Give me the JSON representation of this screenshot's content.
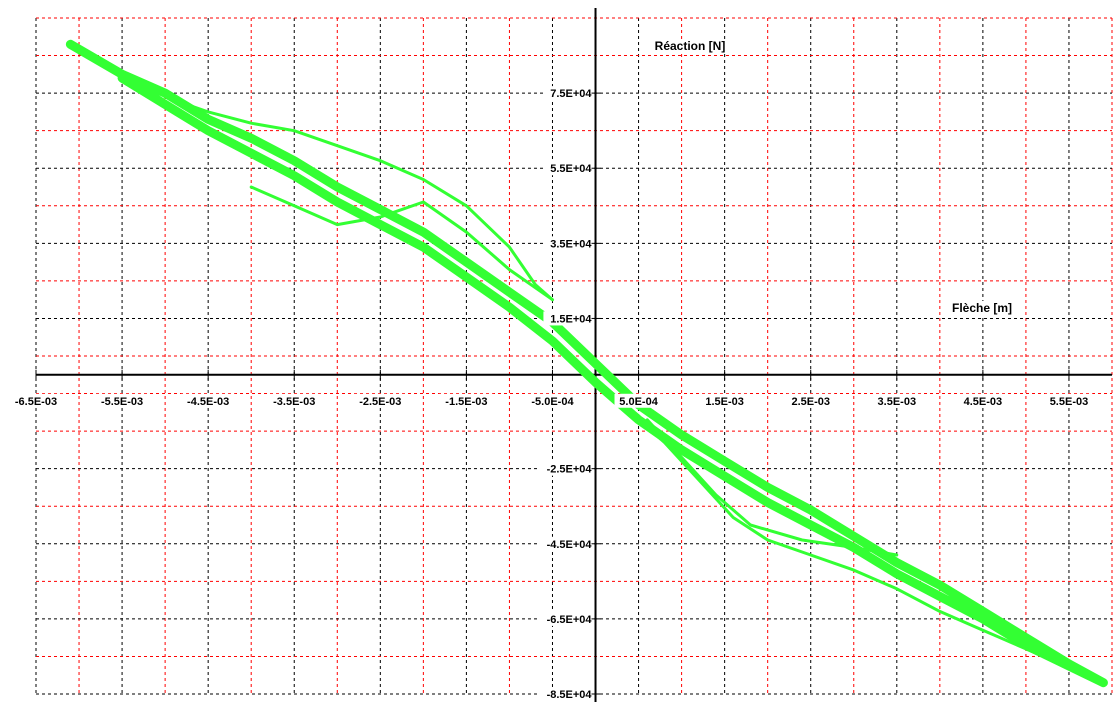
{
  "chart_data": {
    "type": "line",
    "x_axis": {
      "label": "Flèche [m]",
      "range": [
        -0.0065,
        0.006
      ],
      "ticks": [
        {
          "value": -0.0065,
          "label": "-6.5E-03"
        },
        {
          "value": -0.0055,
          "label": "-5.5E-03"
        },
        {
          "value": -0.0045,
          "label": "-4.5E-03"
        },
        {
          "value": -0.0035,
          "label": "-3.5E-03"
        },
        {
          "value": -0.0025,
          "label": "-2.5E-03"
        },
        {
          "value": -0.0015,
          "label": "-1.5E-03"
        },
        {
          "value": -0.0005,
          "label": "-5.0E-04"
        },
        {
          "value": 0.0005,
          "label": "5.0E-04"
        },
        {
          "value": 0.0015,
          "label": "1.5E-03"
        },
        {
          "value": 0.0025,
          "label": "2.5E-03"
        },
        {
          "value": 0.0035,
          "label": "3.5E-03"
        },
        {
          "value": 0.0045,
          "label": "4.5E-03"
        },
        {
          "value": 0.0055,
          "label": "5.5E-03"
        }
      ]
    },
    "y_axis": {
      "label": "Réaction [N]",
      "range": [
        -85000,
        95000
      ],
      "ticks": [
        {
          "value": 75000,
          "label": "7.5E+04"
        },
        {
          "value": 55000,
          "label": "5.5E+04"
        },
        {
          "value": 35000,
          "label": "3.5E+04"
        },
        {
          "value": 15000,
          "label": "1.5E+04"
        },
        {
          "value": -25000,
          "label": "-2.5E+04"
        },
        {
          "value": -45000,
          "label": "-4.5E+04"
        },
        {
          "value": -65000,
          "label": "-6.5E+04"
        },
        {
          "value": -85000,
          "label": "-8.5E+04"
        }
      ]
    },
    "grid": true,
    "grid_colors": {
      "major": "#000000",
      "minor": "#ff0000"
    },
    "series_color": "#33ff33",
    "series": [
      {
        "points": [
          [
            -0.0061,
            88000
          ],
          [
            -0.0055,
            80000
          ],
          [
            -0.005,
            75000
          ],
          [
            -0.0045,
            68000
          ],
          [
            -0.004,
            63000
          ],
          [
            -0.0035,
            57000
          ],
          [
            -0.003,
            50000
          ],
          [
            -0.0025,
            44000
          ],
          [
            -0.002,
            38000
          ],
          [
            -0.0015,
            30000
          ],
          [
            -0.001,
            22000
          ],
          [
            -0.0005,
            14000
          ],
          [
            0.0,
            3000
          ],
          [
            0.0005,
            -8000
          ],
          [
            0.001,
            -16000
          ],
          [
            0.0015,
            -23000
          ],
          [
            0.002,
            -30000
          ],
          [
            0.0025,
            -36000
          ],
          [
            0.003,
            -43000
          ],
          [
            0.0035,
            -50000
          ],
          [
            0.004,
            -56000
          ],
          [
            0.0045,
            -63000
          ],
          [
            0.005,
            -70000
          ],
          [
            0.0055,
            -77000
          ],
          [
            0.0059,
            -82000
          ],
          [
            0.005,
            -72000
          ],
          [
            0.0045,
            -65000
          ],
          [
            0.004,
            -59000
          ],
          [
            0.0035,
            -53000
          ],
          [
            0.003,
            -46000
          ],
          [
            0.0025,
            -40000
          ],
          [
            0.002,
            -34000
          ],
          [
            0.0015,
            -27000
          ],
          [
            0.001,
            -20000
          ],
          [
            0.0005,
            -12000
          ],
          [
            0.0,
            -2000
          ],
          [
            -0.0005,
            9000
          ],
          [
            -0.001,
            18000
          ],
          [
            -0.0015,
            26000
          ],
          [
            -0.002,
            34000
          ],
          [
            -0.0025,
            40000
          ],
          [
            -0.003,
            46000
          ],
          [
            -0.0035,
            53000
          ],
          [
            -0.004,
            59000
          ],
          [
            -0.0045,
            65000
          ],
          [
            -0.005,
            72000
          ],
          [
            -0.0055,
            79000
          ]
        ]
      },
      {
        "points": [
          [
            -0.005,
            74000
          ],
          [
            -0.0045,
            70000
          ],
          [
            -0.004,
            67000
          ],
          [
            -0.0035,
            65000
          ],
          [
            -0.003,
            61000
          ],
          [
            -0.0025,
            57000
          ],
          [
            -0.002,
            52000
          ],
          [
            -0.0015,
            45000
          ],
          [
            -0.001,
            34000
          ],
          [
            -0.0007,
            24000
          ],
          [
            -0.0005,
            20000
          ]
        ]
      },
      {
        "points": [
          [
            -0.0005,
            20000
          ],
          [
            -0.001,
            28000
          ],
          [
            -0.0015,
            38000
          ],
          [
            -0.002,
            46000
          ],
          [
            -0.0025,
            42000
          ],
          [
            -0.003,
            40000
          ],
          [
            -0.0035,
            45000
          ],
          [
            -0.004,
            50000
          ]
        ]
      },
      {
        "points": [
          [
            0.0004,
            -10000
          ],
          [
            0.0008,
            -18000
          ],
          [
            0.0012,
            -28000
          ],
          [
            0.0016,
            -38000
          ],
          [
            0.002,
            -44000
          ],
          [
            0.0025,
            -48000
          ],
          [
            0.003,
            -52000
          ],
          [
            0.0035,
            -57000
          ],
          [
            0.004,
            -63000
          ],
          [
            0.0045,
            -68000
          ],
          [
            0.005,
            -73000
          ],
          [
            0.0055,
            -78000
          ]
        ]
      },
      {
        "points": [
          [
            0.0006,
            -12000
          ],
          [
            0.001,
            -22000
          ],
          [
            0.0014,
            -32000
          ],
          [
            0.0018,
            -40000
          ],
          [
            0.0024,
            -44000
          ],
          [
            0.003,
            -46000
          ],
          [
            0.0035,
            -48000
          ]
        ]
      }
    ]
  }
}
